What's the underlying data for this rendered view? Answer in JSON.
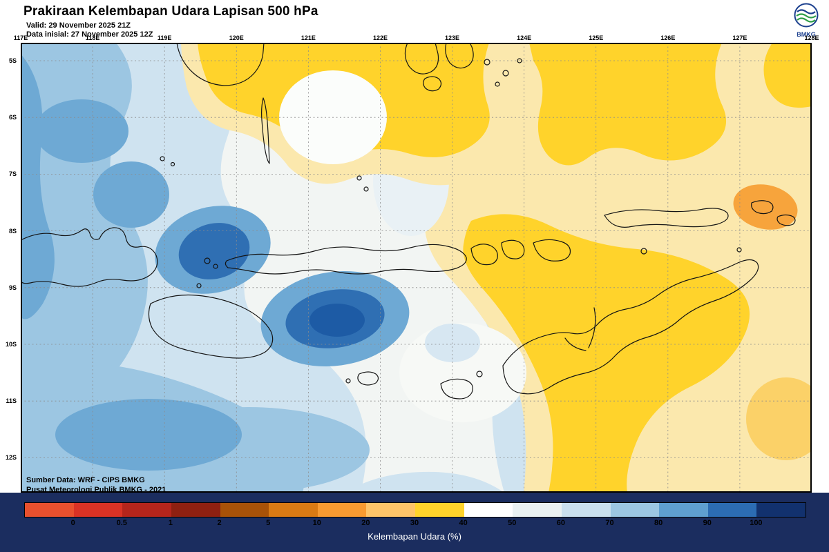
{
  "header": {
    "title": "Prakiraan Kelembapan Udara Lapisan 500 hPa",
    "valid_line": "Valid: 29 November 2025 21Z",
    "init_line": "Data inisial: 27 November 2025 12Z",
    "logo_text": "BMKG"
  },
  "map": {
    "lon_labels": [
      "117E",
      "118E",
      "119E",
      "120E",
      "121E",
      "122E",
      "123E",
      "124E",
      "125E",
      "126E",
      "127E",
      "128E"
    ],
    "lat_labels": [
      "5S",
      "6S",
      "7S",
      "8S",
      "9S",
      "10S",
      "11S",
      "12S"
    ],
    "source_line1": "Sumber Data: WRF - CIPS BMKG",
    "source_line2": "Pusat Meteorologi Publik BMKG - 2021"
  },
  "colorbar": {
    "labels": [
      "0",
      "0.5",
      "1",
      "2",
      "5",
      "10",
      "20",
      "30",
      "40",
      "50",
      "60",
      "70",
      "80",
      "90",
      "100"
    ],
    "colors": [
      "#e8502e",
      "#d93225",
      "#b5251c",
      "#8f2011",
      "#a85208",
      "#d97a14",
      "#f79a31",
      "#fdc469",
      "#ffd32b",
      "#ffffff",
      "#eaf1f2",
      "#c9dfee",
      "#9cc6e2",
      "#5f9fd0",
      "#2c6cb3",
      "#12316e"
    ],
    "caption": "Kelembapan Udara (%)"
  },
  "theme": {
    "footer_bg": "#1b2d5f",
    "map_border": "#000000",
    "grid_color": "#8c8c8c"
  }
}
